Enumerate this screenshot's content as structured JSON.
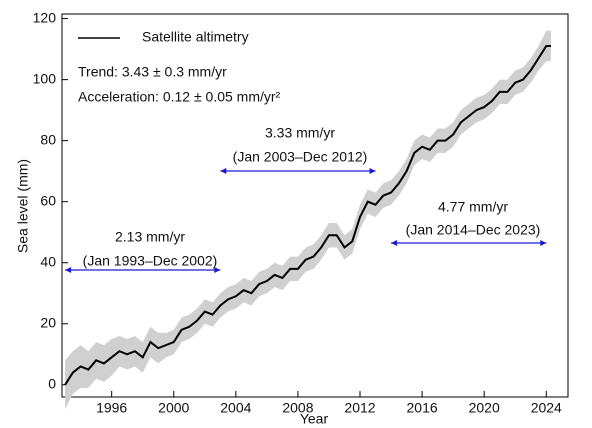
{
  "chart_data": {
    "type": "line",
    "xlabel": "Year",
    "ylabel": "Sea level (mm)",
    "xlim": [
      1992.8,
      2025.4
    ],
    "ylim": [
      -4,
      121.5
    ],
    "xticks": [
      1996,
      2000,
      2004,
      2008,
      2012,
      2016,
      2020,
      2024
    ],
    "yticks": [
      0,
      20,
      40,
      60,
      80,
      100,
      120
    ],
    "legend": "upper left",
    "trend": "Trend: 3.43 ± 0.3 mm/yr",
    "acceleration": "Acceleration: 0.12 ± 0.05 mm/yr²",
    "x": [
      1993.0,
      1993.5,
      1994.0,
      1994.5,
      1995.0,
      1995.5,
      1996.0,
      1996.5,
      1997.0,
      1997.5,
      1998.0,
      1998.5,
      1999.0,
      1999.5,
      2000.0,
      2000.5,
      2001.0,
      2001.5,
      2002.0,
      2002.5,
      2003.0,
      2003.5,
      2004.0,
      2004.5,
      2005.0,
      2005.5,
      2006.0,
      2006.5,
      2007.0,
      2007.5,
      2008.0,
      2008.5,
      2009.0,
      2009.5,
      2010.0,
      2010.5,
      2011.0,
      2011.5,
      2012.0,
      2012.5,
      2013.0,
      2013.5,
      2014.0,
      2014.5,
      2015.0,
      2015.5,
      2016.0,
      2016.5,
      2017.0,
      2017.5,
      2018.0,
      2018.5,
      2019.0,
      2019.5,
      2020.0,
      2020.5,
      2021.0,
      2021.5,
      2022.0,
      2022.5,
      2023.0,
      2023.5,
      2024.0,
      2024.3
    ],
    "series": [
      {
        "name": "Satellite altimetry",
        "color": "#000000",
        "band_color": "#d0d0d0",
        "values": [
          0,
          4,
          6,
          5,
          8,
          7,
          9,
          11,
          10,
          11,
          9,
          14,
          12,
          13,
          14,
          18,
          19,
          21,
          24,
          23,
          26,
          28,
          29,
          31,
          30,
          33,
          34,
          36,
          35,
          38,
          38,
          41,
          42,
          45,
          49,
          49,
          45,
          47,
          55,
          60,
          59,
          62,
          63,
          66,
          70,
          76,
          78,
          77,
          80,
          80,
          82,
          86,
          88,
          90,
          91,
          93,
          96,
          96,
          99,
          100,
          103,
          107,
          111,
          111
        ],
        "errors": [
          8,
          7,
          7,
          6,
          6,
          6,
          6,
          5,
          5,
          5,
          5,
          5,
          5,
          4,
          4,
          4,
          4,
          4,
          4,
          4,
          4,
          4,
          4,
          4,
          4,
          4,
          4,
          4,
          4,
          4,
          4,
          4,
          4,
          4,
          4,
          4,
          4,
          4,
          4,
          4,
          4,
          4,
          4,
          4,
          4,
          4,
          4,
          4,
          4,
          4,
          4,
          4,
          4,
          4,
          4,
          4,
          4,
          4,
          4,
          4,
          4,
          4,
          5,
          5
        ]
      }
    ],
    "annotations": [
      {
        "rate": "2.13 mm/yr",
        "period": "(Jan 1993–Dec 2002)",
        "span": [
          1993,
          2003
        ]
      },
      {
        "rate": "3.33 mm/yr",
        "period": "(Jan 2003–Dec 2012)",
        "span": [
          2003,
          2013
        ]
      },
      {
        "rate": "4.77 mm/yr",
        "period": "(Jan 2014–Dec 2023)",
        "span": [
          2014,
          2024
        ]
      }
    ],
    "rate_color": "#e8201c",
    "period_color": "#1a1ad0"
  }
}
